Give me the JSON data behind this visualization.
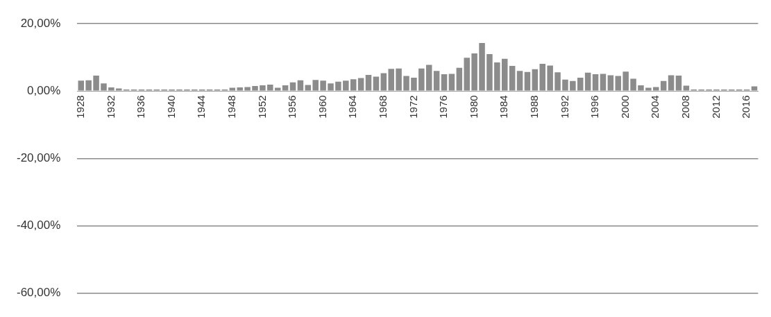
{
  "chart_data": {
    "type": "bar",
    "categories": [
      "1928",
      null,
      null,
      null,
      "1932",
      null,
      null,
      null,
      "1936",
      null,
      null,
      null,
      "1940",
      null,
      null,
      null,
      "1944",
      null,
      null,
      null,
      "1948",
      null,
      null,
      null,
      "1952",
      null,
      null,
      null,
      "1956",
      null,
      null,
      null,
      "1960",
      null,
      null,
      null,
      "1964",
      null,
      null,
      null,
      "1968",
      null,
      null,
      null,
      "1972",
      null,
      null,
      null,
      "1976",
      null,
      null,
      null,
      "1980",
      null,
      null,
      null,
      "1984",
      null,
      null,
      null,
      "1988",
      null,
      null,
      null,
      "1992",
      null,
      null,
      null,
      "1996",
      null,
      null,
      null,
      "2000",
      null,
      null,
      null,
      "2004",
      null,
      null,
      null,
      "2008",
      null,
      null,
      null,
      "2012",
      null,
      null,
      null,
      "2016",
      null
    ],
    "values": [
      3.1,
      3.2,
      4.6,
      2.3,
      1.1,
      0.8,
      0.5,
      0.5,
      0.5,
      0.5,
      0.5,
      0.5,
      0.5,
      0.5,
      0.5,
      0.5,
      0.5,
      0.5,
      0.5,
      0.5,
      1.0,
      1.1,
      1.2,
      1.5,
      1.7,
      1.9,
      1.0,
      1.7,
      2.6,
      3.2,
      1.8,
      3.3,
      3.1,
      2.3,
      2.8,
      3.1,
      3.5,
      3.9,
      4.8,
      4.3,
      5.3,
      6.6,
      6.7,
      4.5,
      4.0,
      6.7,
      7.8,
      6.0,
      5.0,
      5.1,
      6.9,
      9.9,
      11.2,
      14.3,
      11.0,
      8.5,
      9.6,
      7.5,
      6.0,
      5.7,
      6.5,
      8.1,
      7.6,
      5.6,
      3.4,
      3.0,
      4.0,
      5.5,
      5.0,
      5.1,
      4.7,
      4.5,
      5.8,
      3.7,
      1.7,
      1.0,
      1.2,
      3.0,
      4.7,
      4.6,
      1.6,
      0.5,
      0.5,
      0.5,
      0.5,
      0.5,
      0.5,
      0.5,
      0.5,
      1.4
    ],
    "color": "#8c8c8c",
    "ylim": [
      -60,
      20
    ],
    "yticks": [
      {
        "value": -60,
        "label": "-60,00%"
      },
      {
        "value": -40,
        "label": "-40,00%"
      },
      {
        "value": -20,
        "label": "-20,00%"
      },
      {
        "value": 0,
        "label": "0,00%"
      },
      {
        "value": 20,
        "label": "20,00%"
      }
    ],
    "grid": "y"
  }
}
